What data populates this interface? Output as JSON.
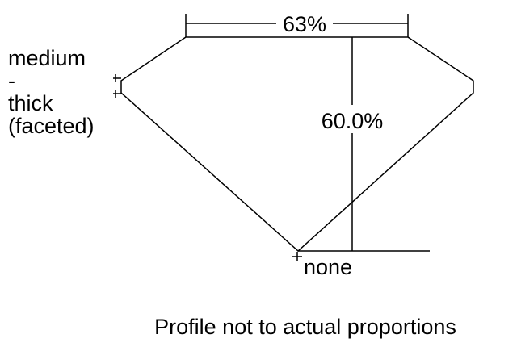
{
  "diagram": {
    "table_percent": "63%",
    "depth_percent": "60.0%",
    "girdle_label_lines": [
      "medium",
      "-",
      "thick",
      "(faceted)"
    ],
    "culet_label": "none",
    "caption": "Profile not to actual proportions",
    "line_color": "#000000",
    "background_color": "#ffffff"
  }
}
